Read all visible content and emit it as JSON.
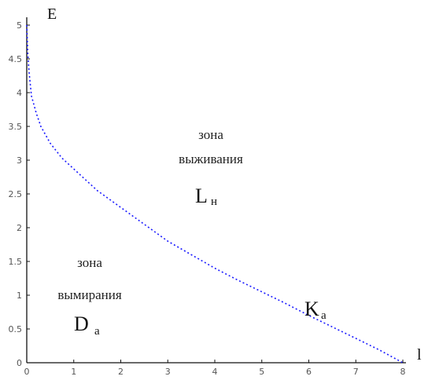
{
  "chart_data": {
    "type": "line",
    "title": "",
    "xlabel": "l",
    "ylabel": "E",
    "xlim": [
      0,
      8
    ],
    "ylim": [
      0,
      5
    ],
    "x_ticks": [
      "0",
      "1",
      "2",
      "3",
      "4",
      "5",
      "6",
      "7",
      "8"
    ],
    "y_ticks": [
      "0",
      "0.5",
      "1",
      "1.5",
      "2",
      "2.5",
      "3",
      "3.5",
      "4",
      "4.5",
      "5"
    ],
    "grid": false,
    "series": [
      {
        "name": "",
        "color": "#1a1aff",
        "line_style": "dotted",
        "x": [
          0,
          0.02,
          0.05,
          0.1,
          0.2,
          0.3,
          0.5,
          0.75,
          1,
          1.5,
          2,
          2.5,
          3,
          3.5,
          4,
          4.5,
          5,
          5.5,
          6,
          6.5,
          7,
          7.5,
          8
        ],
        "y": [
          5.0,
          4.6,
          4.3,
          3.95,
          3.7,
          3.5,
          3.25,
          3.03,
          2.87,
          2.55,
          2.3,
          2.05,
          1.8,
          1.6,
          1.4,
          1.22,
          1.05,
          0.88,
          0.7,
          0.53,
          0.36,
          0.19,
          0
        ]
      }
    ],
    "annotations": [
      {
        "line1": "зона",
        "line2": "выживания",
        "symbol": "L",
        "sub": "н"
      },
      {
        "line1": "зона",
        "line2": "вымирания",
        "symbol": "D",
        "sub": "а"
      },
      {
        "symbol": "K",
        "sub": "а"
      }
    ]
  }
}
